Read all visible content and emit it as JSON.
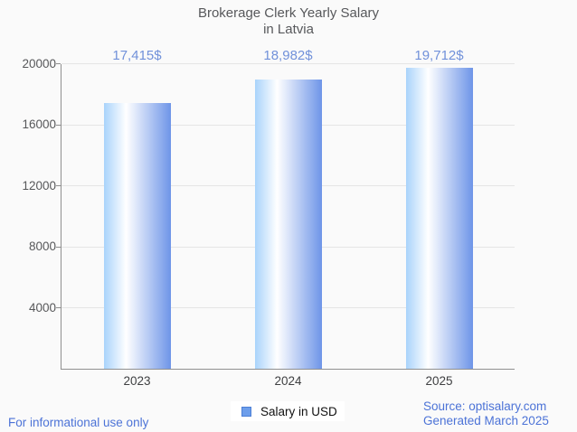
{
  "title": {
    "line1": "Brokerage Clerk Yearly Salary",
    "line2": "in Latvia"
  },
  "chart_data": {
    "type": "bar",
    "title": "Brokerage Clerk Yearly Salary in Latvia",
    "categories": [
      "2023",
      "2024",
      "2025"
    ],
    "series": [
      {
        "name": "Salary in USD",
        "values": [
          17415,
          18982,
          19712
        ]
      }
    ],
    "value_labels": [
      "17,415$",
      "18,982$",
      "19,712$"
    ],
    "xlabel": "",
    "ylabel": "",
    "ylim": [
      0,
      20000
    ],
    "yticks": [
      4000,
      8000,
      12000,
      16000,
      20000
    ],
    "grid": "horizontal",
    "legend_position": "bottom"
  },
  "legend": {
    "label": "Salary in USD"
  },
  "footer": {
    "left": "For informational use only",
    "source": "Source: optisalary.com",
    "generated": "Generated March 2025"
  },
  "colors": {
    "background": "#fafafa",
    "title_text": "#57585b",
    "axis": "#8f8f8f",
    "gridline": "#e5e5e5",
    "tick_label": "#57585a",
    "value_label": "#7191da",
    "footer_link": "#4c73d7",
    "bar_gradient_left": "#a9d3fb",
    "bar_gradient_mid": "#ffffff",
    "bar_gradient_right": "#6e95e8",
    "legend_swatch_fill": "#6d9eeb",
    "legend_swatch_border": "#4c7fd6"
  }
}
